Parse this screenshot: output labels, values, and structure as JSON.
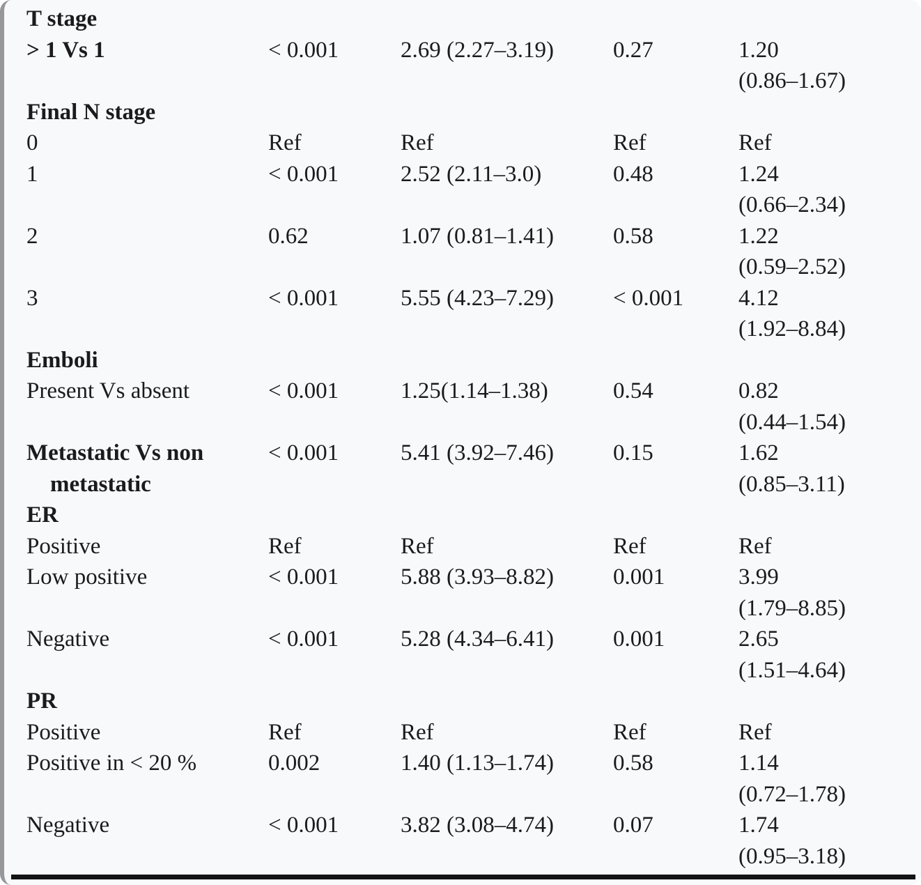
{
  "page": {
    "background_color": "#f8f9fb",
    "text_color": "#1b1b1d",
    "edge_band_color": "#97979b",
    "bottom_rule_color": "#131313"
  },
  "table": {
    "rows": [
      {
        "type": "section",
        "label": "T stage"
      },
      {
        "type": "data",
        "label": "> 1 Vs 1",
        "p1": "< 0.001",
        "hr1": "2.69 (2.27–3.19)",
        "p2": "0.27",
        "hr2": "1.20",
        "hr2_ci": "(0.86–1.67)"
      },
      {
        "type": "section",
        "label": "Final N stage"
      },
      {
        "type": "data",
        "label": "0",
        "p1": "Ref",
        "hr1": "Ref",
        "p2": "Ref",
        "hr2": "Ref",
        "hr2_ci": ""
      },
      {
        "type": "data",
        "label": "1",
        "p1": "< 0.001",
        "hr1": "2.52 (2.11–3.0)",
        "p2": "0.48",
        "hr2": "1.24",
        "hr2_ci": "(0.66–2.34)"
      },
      {
        "type": "data",
        "label": "2",
        "p1": "0.62",
        "hr1": "1.07 (0.81–1.41)",
        "p2": "0.58",
        "hr2": "1.22",
        "hr2_ci": "(0.59–2.52)"
      },
      {
        "type": "data",
        "label": "3",
        "p1": "< 0.001",
        "hr1": "5.55 (4.23–7.29)",
        "p2": "< 0.001",
        "hr2": "4.12",
        "hr2_ci": "(1.92–8.84)"
      },
      {
        "type": "section",
        "label": "Emboli"
      },
      {
        "type": "data",
        "label": "Present Vs absent",
        "p1": "< 0.001",
        "hr1": "1.25(1.14–1.38)",
        "p2": "0.54",
        "hr2": "0.82",
        "hr2_ci": "(0.44–1.54)"
      },
      {
        "type": "data",
        "label": "Metastatic Vs non metastatic",
        "p1": "< 0.001",
        "hr1": "5.41 (3.92–7.46)",
        "p2": "0.15",
        "hr2": "1.62",
        "hr2_ci": "(0.85–3.11)"
      },
      {
        "type": "section",
        "label": "ER"
      },
      {
        "type": "data",
        "label": "Positive",
        "p1": "Ref",
        "hr1": "Ref",
        "p2": "Ref",
        "hr2": "Ref",
        "hr2_ci": ""
      },
      {
        "type": "data",
        "label": "Low positive",
        "p1": "< 0.001",
        "hr1": "5.88 (3.93–8.82)",
        "p2": "0.001",
        "hr2": "3.99",
        "hr2_ci": "(1.79–8.85)"
      },
      {
        "type": "data",
        "label": "Negative",
        "p1": "< 0.001",
        "hr1": "5.28 (4.34–6.41)",
        "p2": "0.001",
        "hr2": "2.65",
        "hr2_ci": "(1.51–4.64)"
      },
      {
        "type": "section",
        "label": "PR"
      },
      {
        "type": "data",
        "label": "Positive",
        "p1": "Ref",
        "hr1": "Ref",
        "p2": "Ref",
        "hr2": "Ref",
        "hr2_ci": ""
      },
      {
        "type": "data",
        "label": "Positive in < 20 %",
        "p1": "0.002",
        "hr1": "1.40 (1.13–1.74)",
        "p2": "0.58",
        "hr2": "1.14",
        "hr2_ci": "(0.72–1.78)"
      },
      {
        "type": "data",
        "label": "Negative",
        "p1": "< 0.001",
        "hr1": "3.82 (3.08–4.74)",
        "p2": "0.07",
        "hr2": "1.74",
        "hr2_ci": "(0.95–3.18)"
      }
    ]
  }
}
